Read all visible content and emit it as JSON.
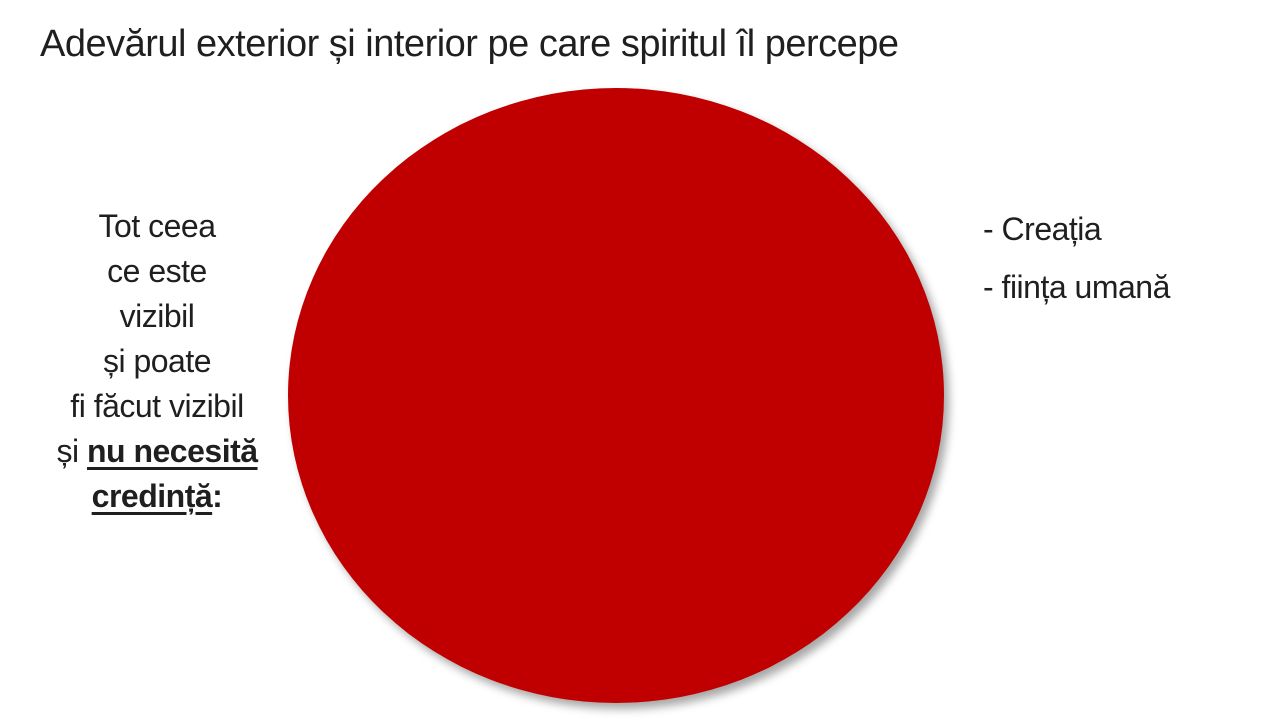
{
  "slide": {
    "title": "Adevărul exterior și interior pe care spiritul îl percepe",
    "background_color": "#ffffff",
    "text_color": "#1f1f1f"
  },
  "circle": {
    "semantic": "red-filled-circle-shape",
    "color": "#C00000",
    "shadow_color": "rgba(0,0,0,0.35)"
  },
  "left_text": {
    "lines": [
      "Tot ceea",
      "ce este",
      "vizibil",
      "și poate",
      "fi făcut vizibil"
    ],
    "line6_prefix": "și ",
    "line6_emphasis": "nu necesită",
    "line7_emphasis": "credință",
    "line7_suffix": ":"
  },
  "right_list": {
    "items": [
      "- Creația",
      "- ființa umană"
    ]
  }
}
